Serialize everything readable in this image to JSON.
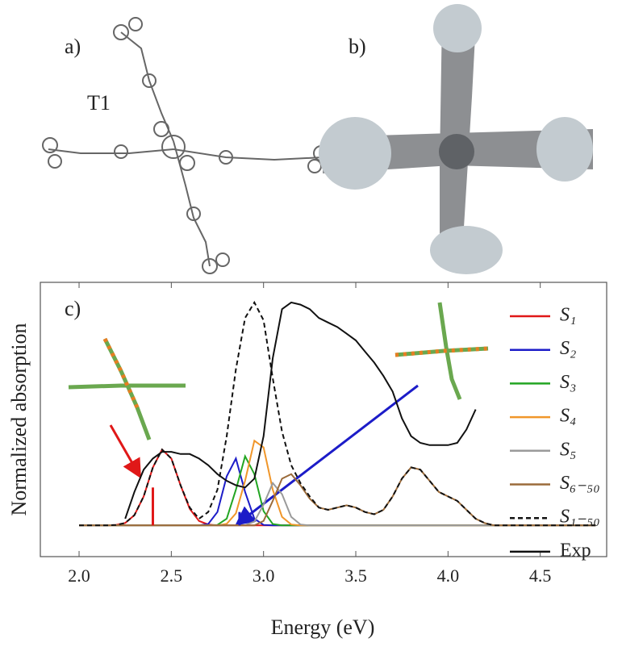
{
  "panels": {
    "a": "a)",
    "b": "b)",
    "molecule": "T1"
  },
  "chart_data": {
    "type": "line",
    "panel_label": "c)",
    "xlabel": "Energy (eV)",
    "ylabel": "Normalized absorption",
    "xlim": [
      1.79,
      4.86
    ],
    "ylim": [
      -0.14,
      1.09
    ],
    "xticks": [
      {
        "value": 2,
        "label": "2.0"
      },
      {
        "value": 2.5,
        "label": "2.5"
      },
      {
        "value": 3,
        "label": "3.0"
      },
      {
        "value": 3.5,
        "label": "3.5"
      },
      {
        "value": 4,
        "label": "4.0"
      },
      {
        "value": 4.5,
        "label": "4.5"
      }
    ],
    "legend": "right",
    "grid": false,
    "x": [
      2.0,
      2.05,
      2.1,
      2.15,
      2.2,
      2.25,
      2.3,
      2.35,
      2.4,
      2.45,
      2.5,
      2.55,
      2.6,
      2.65,
      2.7,
      2.75,
      2.8,
      2.85,
      2.9,
      2.95,
      3.0,
      3.05,
      3.1,
      3.15,
      3.2,
      3.25,
      3.3,
      3.35,
      3.4,
      3.45,
      3.5,
      3.55,
      3.6,
      3.65,
      3.7,
      3.75,
      3.8,
      3.85,
      3.9,
      3.95,
      4.0,
      4.05,
      4.1,
      4.15,
      4.2,
      4.25,
      4.3,
      4.35,
      4.4,
      4.45,
      4.5,
      4.55,
      4.6,
      4.65,
      4.7,
      4.75,
      4.8
    ],
    "series": [
      {
        "name": "S₁",
        "color": "#e01818",
        "style": "solid",
        "values": [
          0,
          0,
          0,
          0,
          0.002,
          0.011,
          0.046,
          0.13,
          0.26,
          0.34,
          0.3,
          0.18,
          0.074,
          0.02,
          0.004,
          0,
          0,
          0,
          0,
          0,
          0,
          0,
          0,
          0,
          0,
          0,
          0,
          0,
          0,
          0,
          0,
          0,
          0,
          0,
          0,
          0,
          0,
          0,
          0,
          0,
          0,
          0,
          0,
          0,
          0,
          0,
          0,
          0,
          0,
          0,
          0,
          0,
          0,
          0,
          0,
          0,
          0
        ]
      },
      {
        "name": "S₂",
        "color": "#1c1cc8",
        "style": "solid",
        "values": [
          0,
          0,
          0,
          0,
          0,
          0,
          0,
          0,
          0,
          0,
          0,
          0,
          0,
          0,
          0.006,
          0.06,
          0.22,
          0.3,
          0.15,
          0.03,
          0.002,
          0,
          0,
          0,
          0,
          0,
          0,
          0,
          0,
          0,
          0,
          0,
          0,
          0,
          0,
          0,
          0,
          0,
          0,
          0,
          0,
          0,
          0,
          0,
          0,
          0,
          0,
          0,
          0,
          0,
          0,
          0,
          0,
          0,
          0,
          0,
          0
        ]
      },
      {
        "name": "S₃",
        "color": "#22a522",
        "style": "solid",
        "values": [
          0,
          0,
          0,
          0,
          0,
          0,
          0,
          0,
          0,
          0,
          0,
          0,
          0,
          0,
          0,
          0.002,
          0.03,
          0.16,
          0.31,
          0.23,
          0.064,
          0.006,
          0,
          0,
          0,
          0,
          0,
          0,
          0,
          0,
          0,
          0,
          0,
          0,
          0,
          0,
          0,
          0,
          0,
          0,
          0,
          0,
          0,
          0,
          0,
          0,
          0,
          0,
          0,
          0,
          0,
          0,
          0,
          0,
          0,
          0,
          0
        ]
      },
      {
        "name": "S₄",
        "color": "#f0962a",
        "style": "solid",
        "values": [
          0,
          0,
          0,
          0,
          0,
          0,
          0,
          0,
          0,
          0,
          0,
          0,
          0,
          0,
          0,
          0,
          0.007,
          0.054,
          0.2,
          0.38,
          0.35,
          0.16,
          0.038,
          0.004,
          0,
          0,
          0,
          0,
          0,
          0,
          0,
          0,
          0,
          0,
          0,
          0,
          0,
          0,
          0,
          0,
          0,
          0,
          0,
          0,
          0,
          0,
          0,
          0,
          0,
          0,
          0,
          0,
          0,
          0,
          0,
          0,
          0
        ]
      },
      {
        "name": "S₅",
        "color": "#9a9a9a",
        "style": "solid",
        "values": [
          0,
          0,
          0,
          0,
          0,
          0,
          0,
          0,
          0,
          0,
          0,
          0,
          0,
          0,
          0,
          0,
          0,
          0,
          0.001,
          0.017,
          0.093,
          0.19,
          0.14,
          0.038,
          0.004,
          0,
          0,
          0,
          0,
          0,
          0,
          0,
          0,
          0,
          0,
          0,
          0,
          0,
          0,
          0,
          0,
          0,
          0,
          0,
          0,
          0,
          0,
          0,
          0,
          0,
          0,
          0,
          0,
          0,
          0,
          0,
          0
        ]
      },
      {
        "name": "S₆₋₅₀",
        "color": "#9b6b3a",
        "style": "solid",
        "values": [
          0,
          0,
          0,
          0,
          0,
          0,
          0,
          0,
          0,
          0,
          0,
          0,
          0,
          0,
          0,
          0,
          0,
          0,
          0,
          0,
          0.02,
          0.11,
          0.21,
          0.23,
          0.18,
          0.12,
          0.08,
          0.07,
          0.08,
          0.09,
          0.08,
          0.06,
          0.05,
          0.07,
          0.13,
          0.21,
          0.26,
          0.25,
          0.2,
          0.15,
          0.13,
          0.11,
          0.07,
          0.03,
          0.01,
          0,
          0,
          0,
          0,
          0,
          0,
          0,
          0,
          0,
          0,
          0,
          0
        ]
      },
      {
        "name": "S₁₋₅₀",
        "color": "#111111",
        "style": "dashed",
        "values": [
          0,
          0,
          0,
          0,
          0.002,
          0.011,
          0.046,
          0.13,
          0.26,
          0.34,
          0.3,
          0.18,
          0.08,
          0.03,
          0.06,
          0.16,
          0.4,
          0.7,
          0.93,
          1.0,
          0.92,
          0.66,
          0.42,
          0.27,
          0.19,
          0.13,
          0.08,
          0.07,
          0.08,
          0.09,
          0.08,
          0.06,
          0.05,
          0.07,
          0.13,
          0.21,
          0.26,
          0.25,
          0.2,
          0.15,
          0.13,
          0.11,
          0.07,
          0.03,
          0.01,
          0,
          0,
          0,
          0,
          0,
          0,
          0,
          0,
          0,
          0,
          0,
          0
        ]
      },
      {
        "name": "Exp",
        "color": "#111111",
        "style": "solid",
        "values": [
          null,
          null,
          null,
          null,
          null,
          0.03,
          0.15,
          0.25,
          0.3,
          0.33,
          0.33,
          0.32,
          0.32,
          0.3,
          0.27,
          0.23,
          0.2,
          0.18,
          0.17,
          0.21,
          0.4,
          0.75,
          0.97,
          1.0,
          0.99,
          0.97,
          0.93,
          0.91,
          0.89,
          0.86,
          0.83,
          0.78,
          0.73,
          0.67,
          0.6,
          0.48,
          0.4,
          0.37,
          0.36,
          0.36,
          0.36,
          0.37,
          0.43,
          0.52,
          null,
          null,
          null,
          null,
          null,
          null,
          null,
          null,
          null,
          null,
          null,
          null,
          null
        ]
      }
    ],
    "sticks": [
      {
        "x": 2.4,
        "value": 0.17,
        "color": "#e01818"
      },
      {
        "x": 2.87,
        "value": 0.06,
        "color": "#1c1cc8"
      }
    ]
  }
}
